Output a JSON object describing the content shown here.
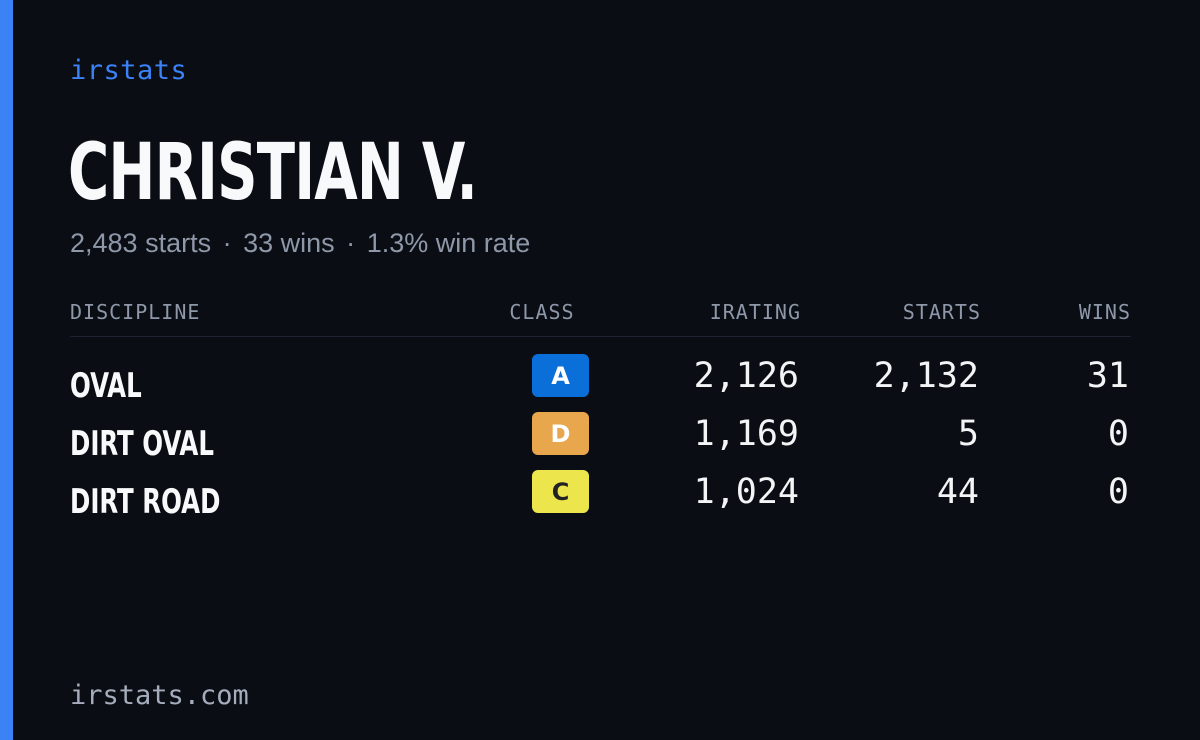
{
  "brand": "irstats",
  "driver": {
    "name": "CHRISTIAN V.",
    "starts_text": "2,483 starts",
    "wins_text": "33 wins",
    "win_rate_text": "1.3% win rate",
    "separator": "·"
  },
  "table": {
    "headers": {
      "discipline": "DISCIPLINE",
      "class": "CLASS",
      "irating": "IRATING",
      "starts": "STARTS",
      "wins": "WINS"
    },
    "rows": [
      {
        "discipline": "OVAL",
        "class": "A",
        "class_bg": "#0a6fd9",
        "class_fg": "#ffffff",
        "irating": "2,126",
        "starts": "2,132",
        "wins": "31"
      },
      {
        "discipline": "DIRT OVAL",
        "class": "D",
        "class_bg": "#e8a74d",
        "class_fg": "#ffffff",
        "irating": "1,169",
        "starts": "5",
        "wins": "0"
      },
      {
        "discipline": "DIRT ROAD",
        "class": "C",
        "class_bg": "#ece54c",
        "class_fg": "#222222",
        "irating": "1,024",
        "starts": "44",
        "wins": "0"
      }
    ]
  },
  "footer": "irstats.com",
  "colors": {
    "accent": "#3b82f6",
    "background": "#0a0d14"
  }
}
